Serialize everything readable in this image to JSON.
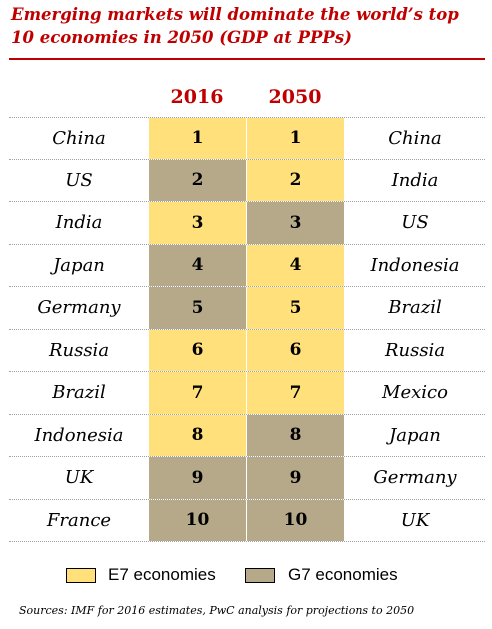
{
  "colors": {
    "e7": "#ffe07a",
    "g7": "#b5a98a",
    "accent": "#c00000"
  },
  "chart_data": {
    "type": "table",
    "title": "Emerging markets will dominate the world’s top 10 economies in 2050 (GDP at PPPs)",
    "columns": [
      "2016",
      "2050"
    ],
    "rows": [
      {
        "rank": "1",
        "country_2016": "China",
        "group_2016": "e7",
        "country_2050": "China",
        "group_2050": "e7"
      },
      {
        "rank": "2",
        "country_2016": "US",
        "group_2016": "g7",
        "country_2050": "India",
        "group_2050": "e7"
      },
      {
        "rank": "3",
        "country_2016": "India",
        "group_2016": "e7",
        "country_2050": "US",
        "group_2050": "g7"
      },
      {
        "rank": "4",
        "country_2016": "Japan",
        "group_2016": "g7",
        "country_2050": "Indonesia",
        "group_2050": "e7"
      },
      {
        "rank": "5",
        "country_2016": "Germany",
        "group_2016": "g7",
        "country_2050": "Brazil",
        "group_2050": "e7"
      },
      {
        "rank": "6",
        "country_2016": "Russia",
        "group_2016": "e7",
        "country_2050": "Russia",
        "group_2050": "e7"
      },
      {
        "rank": "7",
        "country_2016": "Brazil",
        "group_2016": "e7",
        "country_2050": "Mexico",
        "group_2050": "e7"
      },
      {
        "rank": "8",
        "country_2016": "Indonesia",
        "group_2016": "e7",
        "country_2050": "Japan",
        "group_2050": "g7"
      },
      {
        "rank": "9",
        "country_2016": "UK",
        "group_2016": "g7",
        "country_2050": "Germany",
        "group_2050": "g7"
      },
      {
        "rank": "10",
        "country_2016": "France",
        "group_2016": "g7",
        "country_2050": "UK",
        "group_2050": "g7"
      }
    ],
    "legend": [
      {
        "key": "e7",
        "label": "E7 economies"
      },
      {
        "key": "g7",
        "label": "G7 economies"
      }
    ],
    "source": "Sources: IMF for 2016 estimates, PwC analysis for projections to 2050"
  }
}
